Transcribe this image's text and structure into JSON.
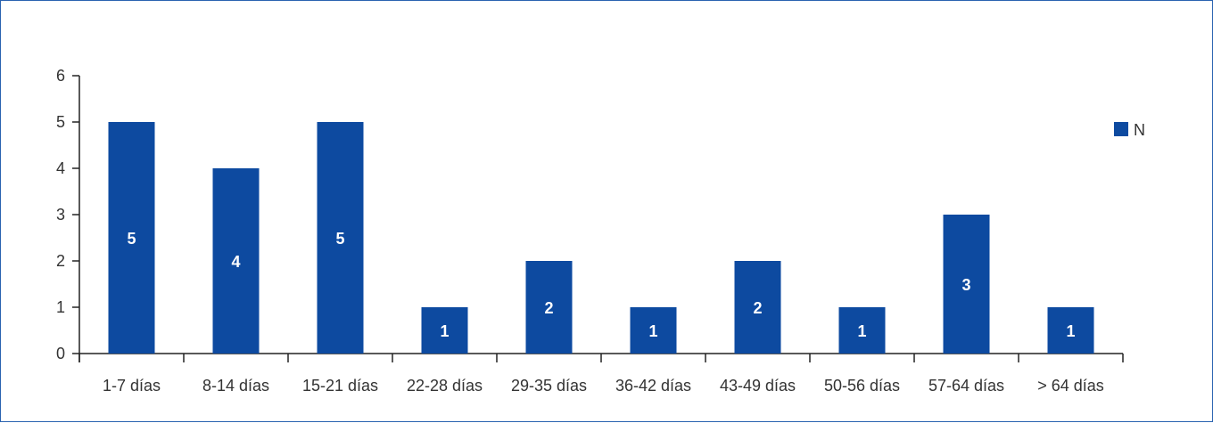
{
  "chart_data": {
    "type": "bar",
    "categories": [
      "1-7 días",
      "8-14 días",
      "15-21 días",
      "22-28 días",
      "29-35 días",
      "36-42 días",
      "43-49 días",
      "50-56 días",
      "57-64 días",
      "> 64 días"
    ],
    "series": [
      {
        "name": "N",
        "values": [
          5,
          4,
          5,
          1,
          2,
          1,
          2,
          1,
          3,
          1
        ],
        "color": "#0d4aa0"
      }
    ],
    "yticks": [
      0,
      1,
      2,
      3,
      4,
      5,
      6
    ],
    "ylim": [
      0,
      6
    ],
    "grid": false,
    "legend_position": "right",
    "data_labels": true
  }
}
